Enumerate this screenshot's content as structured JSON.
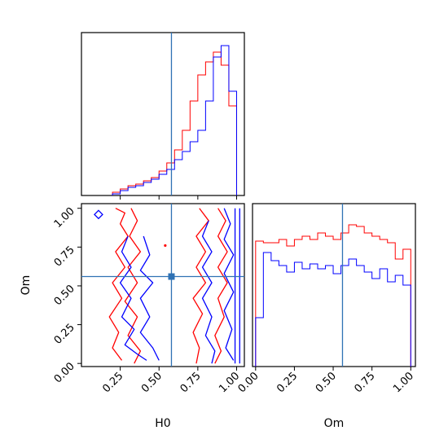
{
  "chart_data": {
    "type": "corner",
    "parameters": [
      "H0",
      "Om"
    ],
    "truths": {
      "H0": 0.58,
      "Om": 0.56
    },
    "colors": {
      "series_a": "#ff0000",
      "series_b": "#0000ff",
      "truth": "#2f72b4"
    },
    "panels": [
      {
        "id": "hist-h0",
        "type": "step",
        "xlim": [
          0.0,
          1.05
        ],
        "tick_values": [
          0.25,
          0.5,
          0.75,
          1.0
        ],
        "bin_edges": [
          0.2,
          0.25,
          0.3,
          0.35,
          0.4,
          0.45,
          0.5,
          0.55,
          0.6,
          0.65,
          0.7,
          0.75,
          0.8,
          0.85,
          0.9,
          0.95,
          1.0
        ],
        "series": [
          {
            "color": "#ff0000",
            "values": [
              0.02,
              0.04,
              0.06,
              0.07,
              0.09,
              0.11,
              0.15,
              0.2,
              0.28,
              0.4,
              0.58,
              0.74,
              0.82,
              0.88,
              0.8,
              0.55
            ]
          },
          {
            "color": "#0000ff",
            "values": [
              0.01,
              0.03,
              0.05,
              0.06,
              0.08,
              0.1,
              0.13,
              0.16,
              0.22,
              0.27,
              0.33,
              0.4,
              0.58,
              0.85,
              0.92,
              0.64
            ]
          }
        ],
        "ylim": [
          0,
          1.0
        ]
      },
      {
        "id": "hist-om",
        "type": "step",
        "xlim": [
          -0.02,
          1.03
        ],
        "tick_values": [
          0.0,
          0.25,
          0.5,
          0.75,
          1.0
        ],
        "tick_labels": [
          "0.00",
          "0.25",
          "0.50",
          "0.75",
          "1.00"
        ],
        "bin_edges": [
          0.0,
          0.05,
          0.1,
          0.15,
          0.2,
          0.25,
          0.3,
          0.35,
          0.4,
          0.45,
          0.5,
          0.55,
          0.6,
          0.65,
          0.7,
          0.75,
          0.8,
          0.85,
          0.9,
          0.95,
          1.0
        ],
        "series": [
          {
            "color": "#ff0000",
            "values": [
              0.77,
              0.76,
              0.76,
              0.78,
              0.74,
              0.78,
              0.8,
              0.78,
              0.82,
              0.8,
              0.78,
              0.82,
              0.87,
              0.86,
              0.82,
              0.8,
              0.78,
              0.76,
              0.66,
              0.72
            ]
          },
          {
            "color": "#0000ff",
            "values": [
              0.3,
              0.7,
              0.65,
              0.62,
              0.58,
              0.64,
              0.6,
              0.63,
              0.6,
              0.62,
              0.57,
              0.62,
              0.66,
              0.62,
              0.58,
              0.54,
              0.6,
              0.52,
              0.56,
              0.5
            ]
          }
        ],
        "ylim": [
          0,
          1.0
        ]
      },
      {
        "id": "contour-h0-om",
        "type": "contour",
        "xlabel": "H0",
        "ylabel": "Om",
        "xlim": [
          0.0,
          1.05
        ],
        "ylim": [
          -0.02,
          1.03
        ],
        "x_ticks": [
          0.25,
          0.5,
          0.75,
          1.0
        ],
        "x_tick_labels": [
          "0.25",
          "0.50",
          "0.75",
          "1.00"
        ],
        "y_ticks": [
          0.0,
          0.25,
          0.5,
          0.75,
          1.0
        ],
        "y_tick_labels": [
          "0.00",
          "0.25",
          "0.50",
          "0.75",
          "1.00"
        ],
        "contours": [
          {
            "color": "#ff0000",
            "points": [
              [
                0.22,
                1.0
              ],
              [
                0.28,
                0.97
              ],
              [
                0.25,
                0.9
              ],
              [
                0.3,
                0.82
              ],
              [
                0.22,
                0.72
              ],
              [
                0.28,
                0.62
              ],
              [
                0.2,
                0.52
              ],
              [
                0.26,
                0.42
              ],
              [
                0.18,
                0.3
              ],
              [
                0.24,
                0.2
              ],
              [
                0.2,
                0.1
              ],
              [
                0.26,
                0.02
              ]
            ]
          },
          {
            "color": "#ff0000",
            "points": [
              [
                0.32,
                1.0
              ],
              [
                0.36,
                0.92
              ],
              [
                0.31,
                0.82
              ],
              [
                0.38,
                0.72
              ],
              [
                0.3,
                0.62
              ],
              [
                0.36,
                0.52
              ],
              [
                0.28,
                0.4
              ],
              [
                0.36,
                0.3
              ],
              [
                0.3,
                0.18
              ],
              [
                0.38,
                0.08
              ],
              [
                0.34,
                0.0
              ]
            ]
          },
          {
            "color": "#0000ff",
            "points": [
              [
                0.3,
                0.82
              ],
              [
                0.26,
                0.72
              ],
              [
                0.32,
                0.62
              ],
              [
                0.25,
                0.52
              ],
              [
                0.32,
                0.42
              ],
              [
                0.26,
                0.3
              ],
              [
                0.34,
                0.22
              ],
              [
                0.28,
                0.12
              ],
              [
                0.36,
                0.06
              ],
              [
                0.42,
                0.02
              ]
            ]
          },
          {
            "color": "#0000ff",
            "points": [
              [
                0.4,
                0.82
              ],
              [
                0.44,
                0.7
              ],
              [
                0.38,
                0.6
              ],
              [
                0.46,
                0.52
              ],
              [
                0.38,
                0.42
              ],
              [
                0.44,
                0.3
              ],
              [
                0.38,
                0.2
              ],
              [
                0.46,
                0.1
              ],
              [
                0.5,
                0.02
              ]
            ]
          },
          {
            "color": "#ff0000",
            "points": [
              [
                0.76,
                1.0
              ],
              [
                0.82,
                0.92
              ],
              [
                0.74,
                0.82
              ],
              [
                0.8,
                0.72
              ],
              [
                0.74,
                0.62
              ],
              [
                0.8,
                0.52
              ],
              [
                0.72,
                0.42
              ],
              [
                0.78,
                0.32
              ],
              [
                0.72,
                0.2
              ],
              [
                0.76,
                0.1
              ],
              [
                0.74,
                0.0
              ]
            ]
          },
          {
            "color": "#ff0000",
            "points": [
              [
                0.88,
                1.0
              ],
              [
                0.93,
                0.92
              ],
              [
                0.88,
                0.82
              ],
              [
                0.94,
                0.72
              ],
              [
                0.88,
                0.62
              ],
              [
                0.94,
                0.52
              ],
              [
                0.88,
                0.42
              ],
              [
                0.92,
                0.3
              ],
              [
                0.86,
                0.18
              ],
              [
                0.9,
                0.08
              ],
              [
                0.86,
                0.0
              ]
            ]
          },
          {
            "color": "#0000ff",
            "points": [
              [
                0.82,
                0.92
              ],
              [
                0.78,
                0.82
              ],
              [
                0.84,
                0.72
              ],
              [
                0.78,
                0.62
              ],
              [
                0.84,
                0.52
              ],
              [
                0.78,
                0.42
              ],
              [
                0.84,
                0.3
              ],
              [
                0.8,
                0.18
              ],
              [
                0.86,
                0.08
              ],
              [
                0.84,
                0.0
              ]
            ]
          },
          {
            "color": "#0000ff",
            "points": [
              [
                0.92,
                1.0
              ],
              [
                0.96,
                0.9
              ],
              [
                0.92,
                0.8
              ],
              [
                0.98,
                0.7
              ],
              [
                0.92,
                0.58
              ],
              [
                0.98,
                0.46
              ],
              [
                0.92,
                0.34
              ],
              [
                0.97,
                0.22
              ],
              [
                0.93,
                0.1
              ],
              [
                0.98,
                0.02
              ]
            ]
          },
          {
            "color": "#0000ff",
            "points": [
              [
                1.02,
                1.0
              ],
              [
                1.02,
                0.0
              ]
            ]
          },
          {
            "color": "#0000ff",
            "points": [
              [
                0.99,
                1.0
              ],
              [
                0.99,
                0.0
              ]
            ]
          }
        ],
        "markers": [
          {
            "color": "#0000ff",
            "shape": "diamond",
            "x": 0.11,
            "y": 0.96
          },
          {
            "color": "#ff0000",
            "shape": "dot",
            "x": 0.54,
            "y": 0.76
          }
        ]
      }
    ]
  }
}
